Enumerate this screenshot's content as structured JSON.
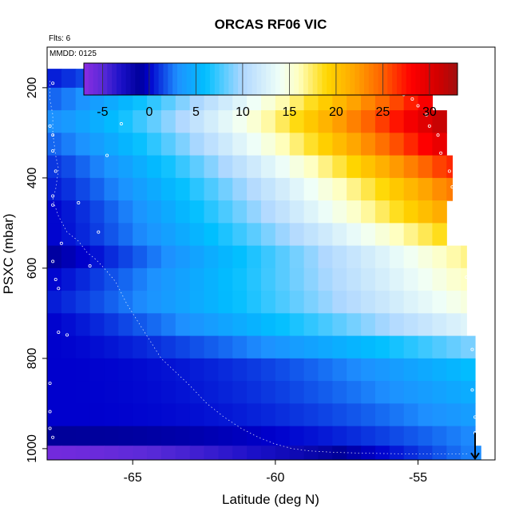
{
  "chart_data": {
    "type": "heatmap",
    "title": "ORCAS RF06 VIC",
    "flights_note": "Flts: 6",
    "date_note": "MMDD: 0125",
    "xlabel": "Latitude (deg N)",
    "ylabel": "PSXC (mbar)",
    "xlim": [
      -68.0,
      -52.3
    ],
    "ylim": [
      1025,
      110
    ],
    "y_inverted": true,
    "x_ticks": [
      -65,
      -60,
      -55
    ],
    "y_ticks": [
      200,
      400,
      600,
      800,
      1000
    ],
    "colorbar": {
      "min": -7,
      "max": 33,
      "ticks": [
        -5,
        0,
        5,
        10,
        15,
        20,
        25,
        30
      ],
      "stops": [
        {
          "v": -7,
          "color": "#8a2be2"
        },
        {
          "v": -5,
          "color": "#5a2ad8"
        },
        {
          "v": -3,
          "color": "#1a10c8"
        },
        {
          "v": -1,
          "color": "#00009a"
        },
        {
          "v": 0,
          "color": "#0000cd"
        },
        {
          "v": 3,
          "color": "#1e90ff"
        },
        {
          "v": 6,
          "color": "#00bfff"
        },
        {
          "v": 10,
          "color": "#b0d8ff"
        },
        {
          "v": 14,
          "color": "#f0fff8"
        },
        {
          "v": 16,
          "color": "#ffffc0"
        },
        {
          "v": 19,
          "color": "#ffd700"
        },
        {
          "v": 22,
          "color": "#ffa500"
        },
        {
          "v": 25,
          "color": "#ff6000"
        },
        {
          "v": 28,
          "color": "#ff0000"
        },
        {
          "v": 31,
          "color": "#d00000"
        },
        {
          "v": 33,
          "color": "#a01010"
        }
      ]
    },
    "lat_bins": [
      -68.0,
      -67.5,
      -67.0,
      -66.5,
      -66.0,
      -65.5,
      -65.0,
      -64.5,
      -64.0,
      -63.5,
      -63.0,
      -62.5,
      -62.0,
      -61.5,
      -61.0,
      -60.5,
      -60.0,
      -59.5,
      -59.0,
      -58.5,
      -58.0,
      -57.5,
      -57.0,
      -56.5,
      -56.0,
      -55.5,
      -55.0,
      -54.5,
      -54.0,
      -53.5,
      -53.0,
      -52.5
    ],
    "p_levels": [
      {
        "p": 175,
        "vmin": 0.5,
        "vmax": 15,
        "alpha": 1.2,
        "xmax": -55.5
      },
      {
        "p": 225,
        "vmin": 2,
        "vmax": 29,
        "alpha": 1.3,
        "xmax": -54.5
      },
      {
        "p": 275,
        "vmin": 3,
        "vmax": 32,
        "alpha": 1.3,
        "xmax": -54.0
      },
      {
        "p": 325,
        "vmin": 2,
        "vmax": 30,
        "alpha": 1.3,
        "xmax": -54.0
      },
      {
        "p": 375,
        "vmin": 1,
        "vmax": 27,
        "alpha": 1.3,
        "xmax": -53.8
      },
      {
        "p": 425,
        "vmin": 0.5,
        "vmax": 24,
        "alpha": 1.3,
        "xmax": -53.8
      },
      {
        "p": 475,
        "vmin": 0,
        "vmax": 22,
        "alpha": 1.3,
        "xmax": -54.0
      },
      {
        "p": 525,
        "vmin": 0,
        "vmax": 19,
        "alpha": 1.3,
        "xmax": -54.0
      },
      {
        "p": 575,
        "vmin": -1,
        "vmax": 17,
        "alpha": 1.2,
        "xmax": -53.3
      },
      {
        "p": 625,
        "vmin": 0,
        "vmax": 16,
        "alpha": 1.2,
        "xmax": -53.3
      },
      {
        "p": 675,
        "vmin": 0.5,
        "vmax": 15,
        "alpha": 1.2,
        "xmax": -53.3
      },
      {
        "p": 725,
        "vmin": 0,
        "vmax": 13,
        "alpha": 1.3,
        "xmax": -53.3
      },
      {
        "p": 775,
        "vmin": 0,
        "vmax": 9,
        "alpha": 1.6,
        "xmax": -53.0
      },
      {
        "p": 825,
        "vmin": 0,
        "vmax": 6,
        "alpha": 2.2,
        "xmax": -53.0
      },
      {
        "p": 875,
        "vmin": 0,
        "vmax": 5,
        "alpha": 2.2,
        "xmax": -53.0
      },
      {
        "p": 925,
        "vmin": 0,
        "vmax": 4,
        "alpha": 2.4,
        "xmax": -53.0
      },
      {
        "p": 975,
        "vmin": -1,
        "vmax": 3,
        "alpha": 2.2,
        "xmax": -53.0
      },
      {
        "p": 1012,
        "vmin": -6,
        "vmax": 3,
        "alpha": 1.5,
        "xmax": -52.8
      }
    ],
    "flight_track": [
      [
        -67.9,
        185
      ],
      [
        -67.9,
        205
      ],
      [
        -67.9,
        228
      ],
      [
        -67.8,
        260
      ],
      [
        -67.8,
        300
      ],
      [
        -67.7,
        350
      ],
      [
        -67.6,
        380
      ],
      [
        -67.7,
        425
      ],
      [
        -67.8,
        448
      ],
      [
        -67.6,
        485
      ],
      [
        -67.3,
        520
      ],
      [
        -66.9,
        540
      ],
      [
        -66.6,
        565
      ],
      [
        -66.3,
        580
      ],
      [
        -66.0,
        600
      ],
      [
        -65.6,
        630
      ],
      [
        -65.2,
        680
      ],
      [
        -64.8,
        720
      ],
      [
        -64.4,
        760
      ],
      [
        -64.0,
        800
      ],
      [
        -63.5,
        830
      ],
      [
        -63.0,
        860
      ],
      [
        -62.4,
        900
      ],
      [
        -61.8,
        930
      ],
      [
        -61.2,
        955
      ],
      [
        -60.6,
        975
      ],
      [
        -60.0,
        990
      ],
      [
        -59.4,
        1000
      ],
      [
        -58.8,
        1005
      ],
      [
        -58.0,
        1008
      ],
      [
        -57.0,
        1010
      ],
      [
        -56.0,
        1011
      ],
      [
        -55.0,
        1012
      ],
      [
        -54.0,
        1012
      ],
      [
        -53.2,
        1012
      ]
    ],
    "marker_points": [
      [
        -67.8,
        190
      ],
      [
        -67.9,
        285
      ],
      [
        -67.8,
        305
      ],
      [
        -67.8,
        340
      ],
      [
        -67.7,
        385
      ],
      [
        -67.8,
        440
      ],
      [
        -67.8,
        460
      ],
      [
        -67.5,
        545
      ],
      [
        -67.8,
        585
      ],
      [
        -67.7,
        625
      ],
      [
        -67.6,
        645
      ],
      [
        -67.6,
        742
      ],
      [
        -67.3,
        748
      ],
      [
        -67.9,
        855
      ],
      [
        -67.9,
        918
      ],
      [
        -67.9,
        955
      ],
      [
        -67.8,
        975
      ],
      [
        -66.9,
        455
      ],
      [
        -66.2,
        520
      ],
      [
        -66.5,
        595
      ],
      [
        -65.9,
        350
      ],
      [
        -65.4,
        280
      ],
      [
        -65.0,
        205
      ],
      [
        -64.5,
        185
      ],
      [
        -64.0,
        182
      ],
      [
        -63.0,
        182
      ],
      [
        -62.0,
        182
      ],
      [
        -61.0,
        182
      ],
      [
        -60.0,
        182
      ],
      [
        -59.0,
        182
      ],
      [
        -58.0,
        182
      ],
      [
        -57.0,
        182
      ],
      [
        -56.0,
        185
      ],
      [
        -55.7,
        200
      ],
      [
        -55.5,
        215
      ],
      [
        -55.2,
        225
      ],
      [
        -55.0,
        240
      ],
      [
        -54.7,
        260
      ],
      [
        -54.6,
        285
      ],
      [
        -54.3,
        305
      ],
      [
        -54.2,
        345
      ],
      [
        -53.9,
        385
      ],
      [
        -53.8,
        420
      ],
      [
        -53.6,
        450
      ],
      [
        -53.5,
        485
      ],
      [
        -53.4,
        530
      ],
      [
        -53.3,
        620
      ],
      [
        -53.2,
        690
      ],
      [
        -53.1,
        780
      ],
      [
        -53.1,
        870
      ],
      [
        -53.0,
        930
      ],
      [
        -53.0,
        965
      ]
    ],
    "arrow": {
      "x": -53.0,
      "y_from": 965,
      "y_to": 1022
    }
  }
}
